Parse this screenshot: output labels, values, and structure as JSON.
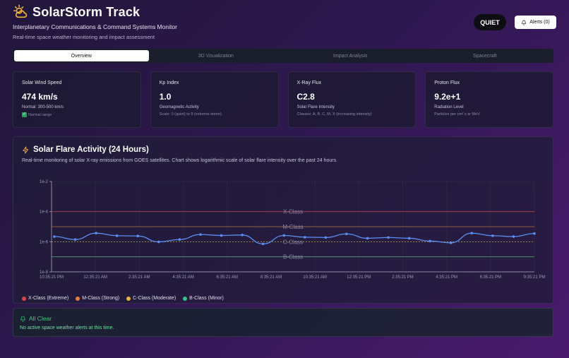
{
  "app": {
    "title": "SolarStorm Track",
    "subtitle": "Interplanetary Communications & Command Systems Monitor",
    "tagline": "Real-time space weather monitoring and impact assessment",
    "status": "QUIET",
    "alerts_label": "Alerts (0)"
  },
  "tabs": [
    {
      "label": "Overview",
      "active": true
    },
    {
      "label": "3D Visualization",
      "active": false
    },
    {
      "label": "Impact Analysis",
      "active": false
    },
    {
      "label": "Spacecraft",
      "active": false
    }
  ],
  "cards": [
    {
      "title": "Solar Wind Speed",
      "value": "474 km/s",
      "desc": "Normal: 300-500 km/s",
      "note": "Normal range"
    },
    {
      "title": "Kp Index",
      "value": "1.0",
      "desc": "Geomagnetic Activity",
      "note": "Scale: 0 (quiet) to 9 (extreme storm)"
    },
    {
      "title": "X-Ray Flux",
      "value": "C2.8",
      "desc": "Solar Flare Intensity",
      "note": "Classes: A, B, C, M, X (increasing intensity)"
    },
    {
      "title": "Proton Flux",
      "value": "9.2e+1",
      "desc": "Radiation Level",
      "note": "Particles per cm² s sr MeV"
    }
  ],
  "chart": {
    "title": "Solar Flare Activity (24 Hours)",
    "description": "Real-time monitoring of solar X-ray emissions from GOES satellites. Chart shows logarithmic scale of solar flare intensity over the past 24 hours.",
    "legend": [
      {
        "label": "X-Class (Extreme)",
        "color": "#e0424c"
      },
      {
        "label": "M-Class (Strong)",
        "color": "#f07a3a"
      },
      {
        "label": "C-Class (Moderate)",
        "color": "#e8b53a"
      },
      {
        "label": "B-Class (Minor)",
        "color": "#36c18a"
      }
    ]
  },
  "chart_data": {
    "type": "line",
    "y_scale": "log",
    "ylim": [
      1e-08,
      0.01
    ],
    "y_ticks": [
      "1e-8",
      "1e-6",
      "1e-4",
      "1e-2"
    ],
    "x_ticks": [
      "10:35:21 PM",
      "12:35:21 AM",
      "2:35:21 AM",
      "4:35:21 AM",
      "6:35:21 AM",
      "8:35:21 AM",
      "10:35:21 AM",
      "12:35:21 PM",
      "2:35:21 PM",
      "4:35:21 PM",
      "6:35:21 PM",
      "9:35:21 PM"
    ],
    "thresholds": [
      {
        "label": "X-Class",
        "value": 0.0001,
        "color": "#b0424c"
      },
      {
        "label": "M-Class",
        "value": 1e-05,
        "color": "#b07a3a"
      },
      {
        "label": "C-Class",
        "value": 1e-06,
        "color": "#b0a03a"
      },
      {
        "label": "B-Class",
        "value": 1e-07,
        "color": "#55a070"
      }
    ],
    "series": [
      {
        "color": "#5b8ef0",
        "x": [
          "10:35:21 PM",
          "11:35:21 PM",
          "12:35:21 AM",
          "1:35:21 AM",
          "2:35:21 AM",
          "3:35:21 AM",
          "4:35:21 AM",
          "5:35:21 AM",
          "6:35:21 AM",
          "7:35:21 AM",
          "8:35:21 AM",
          "9:35:21 AM",
          "10:35:21 AM",
          "11:35:21 AM",
          "12:35:21 PM",
          "1:35:21 PM",
          "2:35:21 PM",
          "3:35:21 PM",
          "4:35:21 PM",
          "5:35:21 PM",
          "6:35:21 PM",
          "7:35:21 PM",
          "8:35:21 PM",
          "9:35:21 PM"
        ],
        "values": [
          2.2e-06,
          1.4e-06,
          3.7e-06,
          2.5e-06,
          2.4e-06,
          9.8e-07,
          1.4e-06,
          3e-06,
          2.6e-06,
          2.8e-06,
          7.2e-07,
          2.6e-06,
          2e-06,
          1.9e-06,
          3.3e-06,
          1.7e-06,
          1.9e-06,
          1.7e-06,
          1.1e-06,
          8.5e-07,
          3.7e-06,
          2.5e-06,
          2.2e-06,
          3.5e-06
        ]
      }
    ]
  },
  "alert": {
    "title": "All Clear",
    "message": "No active space weather alerts at this time."
  }
}
